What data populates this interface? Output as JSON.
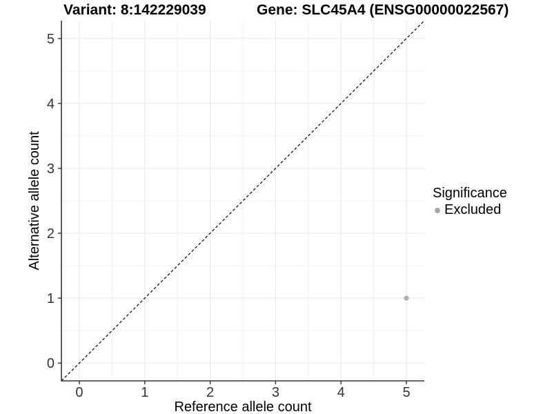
{
  "chart_data": {
    "type": "scatter",
    "title_left": "Variant: 8:142229039",
    "title_right": "Gene: SLC45A4 (ENSG00000022567)",
    "xlabel": "Reference allele count",
    "ylabel": "Alternative allele count",
    "xlim": [
      -0.274,
      5.274
    ],
    "ylim": [
      -0.274,
      5.274
    ],
    "x_ticks": [
      0,
      1,
      2,
      3,
      4,
      5
    ],
    "y_ticks": [
      0,
      1,
      2,
      3,
      4,
      5
    ],
    "minor_grid_step": 0.5,
    "grid": "major+minor",
    "identity_line": {
      "style": "dashed",
      "slope": 1,
      "intercept": 0,
      "color": "#000000"
    },
    "series": [
      {
        "name": "Excluded",
        "color": "#b0b0b0",
        "points": [
          [
            5,
            1
          ]
        ]
      }
    ],
    "legend": {
      "title": "Significance",
      "position": "right",
      "items": [
        {
          "label": "Excluded",
          "color": "#a8a8a8",
          "marker": "circle"
        }
      ]
    },
    "colors": {
      "background": "#ffffff",
      "grid_major": "#e7e7e7",
      "grid_minor": "#f2f2f2",
      "axis": "#333333",
      "tick_label": "#333333",
      "axis_title": "#000000",
      "plot_title": "#000000"
    }
  }
}
